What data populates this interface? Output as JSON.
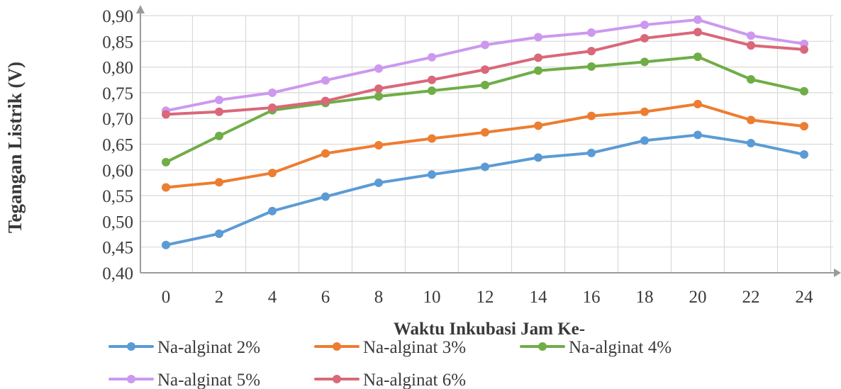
{
  "chart_data": {
    "type": "line",
    "x": [
      0,
      2,
      4,
      6,
      8,
      10,
      12,
      14,
      16,
      18,
      20,
      22,
      24
    ],
    "xlabel": "Waktu Inkubasi Jam Ke-",
    "ylabel": "Tegangan Listrik (V)",
    "ylim": [
      0.4,
      0.9
    ],
    "y_ticks": [
      "0,40",
      "0,45",
      "0,50",
      "0,55",
      "0,60",
      "0,65",
      "0,70",
      "0,75",
      "0,80",
      "0,85",
      "0,90"
    ],
    "x_ticks": [
      "0",
      "2",
      "4",
      "6",
      "8",
      "10",
      "12",
      "14",
      "16",
      "18",
      "20",
      "22",
      "24"
    ],
    "grid": true,
    "legend_position": "bottom",
    "series": [
      {
        "name": "Na-alginat 2%",
        "color": "#5b9bd5",
        "values": [
          0.454,
          0.476,
          0.52,
          0.548,
          0.575,
          0.591,
          0.606,
          0.624,
          0.633,
          0.657,
          0.668,
          0.652,
          0.63
        ]
      },
      {
        "name": "Na-alginat 3%",
        "color": "#ed7d31",
        "values": [
          0.566,
          0.576,
          0.594,
          0.632,
          0.648,
          0.661,
          0.673,
          0.686,
          0.705,
          0.713,
          0.728,
          0.697,
          0.685
        ]
      },
      {
        "name": "Na-alginat 4%",
        "color": "#70ad47",
        "values": [
          0.615,
          0.666,
          0.716,
          0.73,
          0.743,
          0.754,
          0.765,
          0.793,
          0.801,
          0.81,
          0.82,
          0.776,
          0.753
        ]
      },
      {
        "name": "Na-alginat 5%",
        "color": "#cc99ee",
        "values": [
          0.715,
          0.736,
          0.75,
          0.774,
          0.797,
          0.819,
          0.843,
          0.858,
          0.867,
          0.882,
          0.892,
          0.861,
          0.845
        ]
      },
      {
        "name": "Na-alginat 6%",
        "color": "#d9687a",
        "values": [
          0.708,
          0.713,
          0.721,
          0.734,
          0.758,
          0.775,
          0.795,
          0.818,
          0.831,
          0.856,
          0.868,
          0.842,
          0.834
        ]
      }
    ]
  }
}
